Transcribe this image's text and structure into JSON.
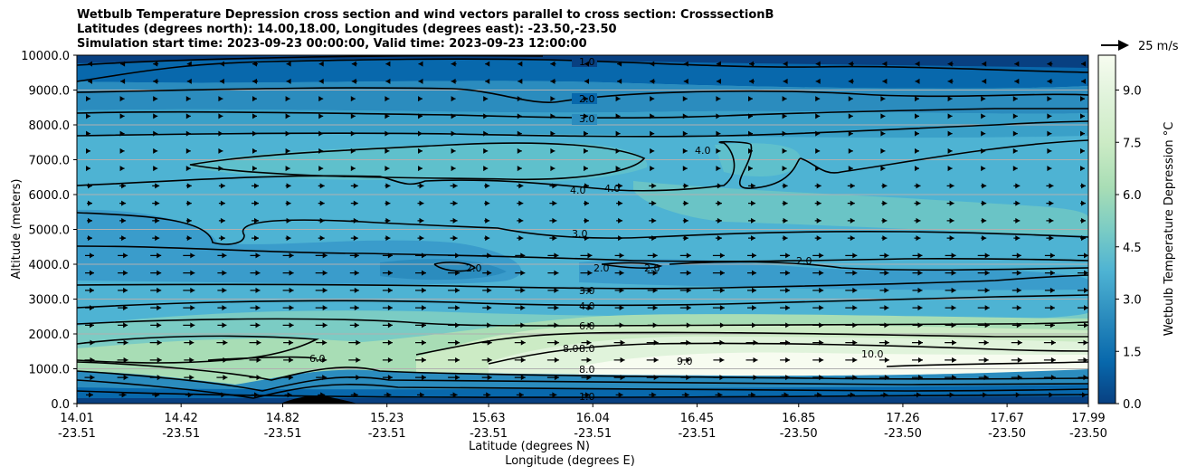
{
  "chart_data": {
    "type": "contour",
    "title_lines": [
      "Wetbulb Temperature Depression cross section and wind vectors parallel to cross section: CrosssectionB",
      "Latitudes (degrees north): 14.00,18.00, Longitudes (degrees east): -23.50,-23.50",
      "Simulation start time: 2023-09-23 00:00:00, Valid time: 2023-09-23 12:00:00"
    ],
    "ylabel": "Altitude (meters)",
    "xlabel_lat": "Latitude (degrees N)",
    "xlabel_lon": "Longitude (degrees E)",
    "ylim": [
      0,
      10000
    ],
    "y_ticks": [
      "0.0",
      "1000.0",
      "2000.0",
      "3000.0",
      "4000.0",
      "5000.0",
      "6000.0",
      "7000.0",
      "8000.0",
      "9000.0",
      "10000.0"
    ],
    "x_ticks_lat": [
      "14.01",
      "14.42",
      "14.82",
      "15.23",
      "15.63",
      "16.04",
      "16.45",
      "16.85",
      "17.26",
      "17.67",
      "17.99"
    ],
    "x_ticks_lon": [
      "-23.51",
      "-23.51",
      "-23.51",
      "-23.51",
      "-23.51",
      "-23.51",
      "-23.51",
      "-23.50",
      "-23.50",
      "-23.50",
      "-23.50"
    ],
    "grid": "horizontal",
    "colorbar": {
      "label": "Wetbulb Temperature Depression °C",
      "range": [
        0,
        10
      ],
      "ticks": [
        "0.0",
        "1.5",
        "3.0",
        "4.5",
        "6.0",
        "7.5",
        "9.0"
      ],
      "colormap": "GnBu_r",
      "colors": [
        "#084081",
        "#0868ac",
        "#2b8cbe",
        "#4eb3d3",
        "#7bccc4",
        "#a8ddb5",
        "#ccebc5",
        "#e0f3db",
        "#f7fcf0"
      ]
    },
    "contour_labels": [
      "1.0",
      "2.0",
      "3.0",
      "4.0",
      "6.0",
      "8.0",
      "9.0",
      "10.0"
    ],
    "quiver_key": {
      "label": "25 m/s"
    }
  }
}
